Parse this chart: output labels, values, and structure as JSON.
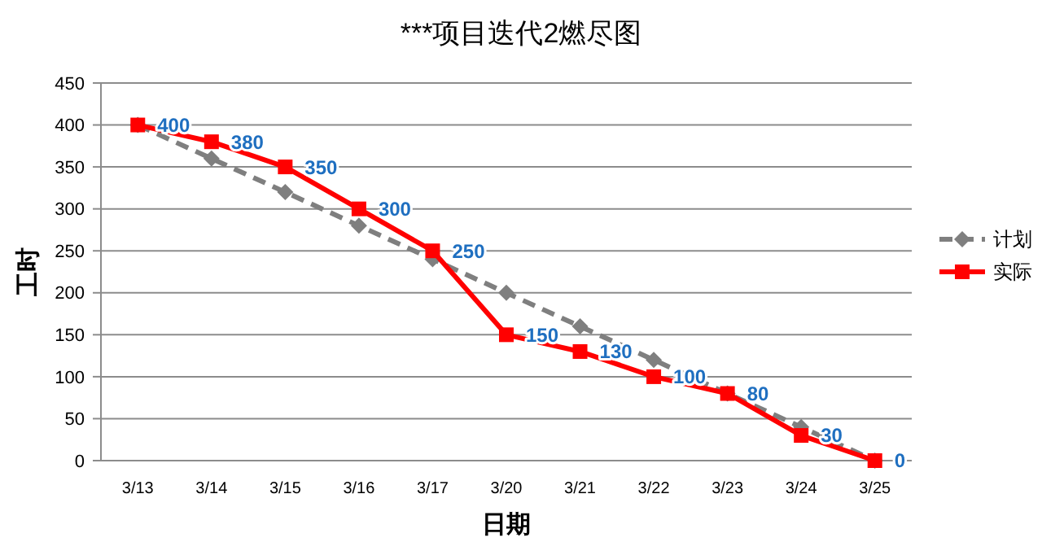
{
  "chart_data": {
    "type": "line",
    "title": "***项目迭代2燃尽图",
    "xlabel": "日期",
    "ylabel": "工时",
    "categories": [
      "3/13",
      "3/14",
      "3/15",
      "3/16",
      "3/17",
      "3/20",
      "3/21",
      "3/22",
      "3/23",
      "3/24",
      "3/25"
    ],
    "series": [
      {
        "name": "计划",
        "color": "#7f7f7f",
        "values": [
          400,
          360,
          320,
          280,
          240,
          200,
          160,
          120,
          80,
          40,
          0
        ],
        "marker": "diamond",
        "line_style": "dashed"
      },
      {
        "name": "实际",
        "color": "#ff0000",
        "values": [
          400,
          380,
          350,
          300,
          250,
          150,
          130,
          100,
          80,
          30,
          0
        ],
        "marker": "square",
        "line_style": "solid",
        "value_labels": [
          "400",
          "380",
          "350",
          "300",
          "250",
          "150",
          "130",
          "100",
          "80",
          "30",
          "0"
        ]
      }
    ],
    "ylim": [
      0,
      450
    ],
    "yticks": [
      0,
      50,
      100,
      150,
      200,
      250,
      300,
      350,
      400,
      450
    ],
    "grid": "y",
    "legend": "right"
  }
}
